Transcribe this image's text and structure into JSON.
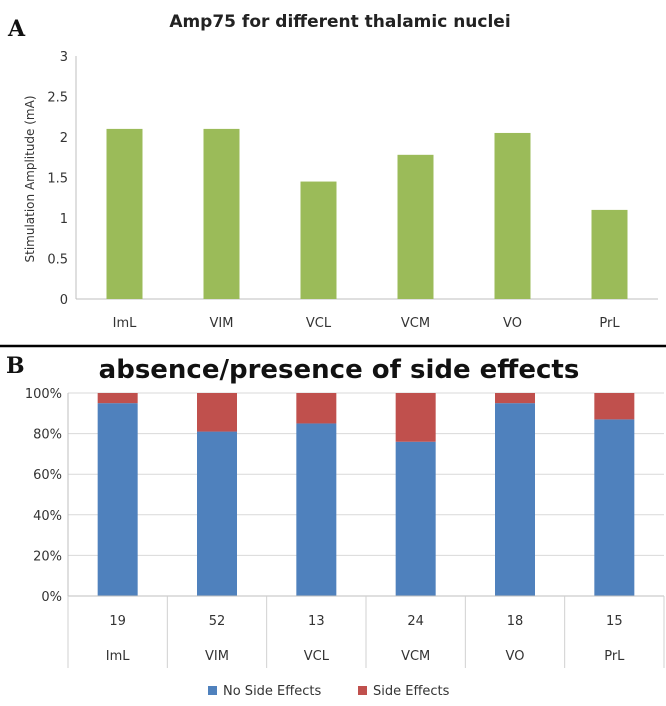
{
  "colors": {
    "bar_green": "#9bbb59",
    "no_side_effects": "#4f81bd",
    "side_effects": "#c0504d",
    "gridline": "#d9d9d9",
    "separator": "#000000"
  },
  "chart_data": [
    {
      "panel_label": "A",
      "type": "bar",
      "title": "Amp75 for different thalamic nuclei",
      "ylabel": "Stimulation Amplitude (mA)",
      "xlabel": "",
      "categories": [
        "ImL",
        "VIM",
        "VCL",
        "VCM",
        "VO",
        "PrL"
      ],
      "values": [
        2.1,
        2.1,
        1.45,
        1.78,
        2.05,
        1.1
      ],
      "ylim": [
        0,
        3
      ],
      "yticks": [
        0,
        0.5,
        1,
        1.5,
        2,
        2.5,
        3
      ],
      "ytick_labels": [
        "0",
        "0.5",
        "1",
        "1.5",
        "2",
        "2.5",
        "3"
      ],
      "grid": false
    },
    {
      "panel_label": "B",
      "type": "bar",
      "stacked": true,
      "title": "absence/presence of side effects",
      "categories": [
        "ImL",
        "VIM",
        "VCL",
        "VCM",
        "VO",
        "PrL"
      ],
      "counts": [
        "19",
        "52",
        "13",
        "24",
        "18",
        "15"
      ],
      "series": [
        {
          "name": "No Side Effects",
          "values": [
            95,
            81,
            85,
            76,
            95,
            87
          ]
        },
        {
          "name": "Side Effects",
          "values": [
            5,
            19,
            15,
            24,
            5,
            13
          ]
        }
      ],
      "ylim": [
        0,
        100
      ],
      "yticks": [
        0,
        20,
        40,
        60,
        80,
        100
      ],
      "ytick_labels": [
        "0%",
        "20%",
        "40%",
        "60%",
        "80%",
        "100%"
      ],
      "legend_position": "bottom",
      "grid": true
    }
  ]
}
